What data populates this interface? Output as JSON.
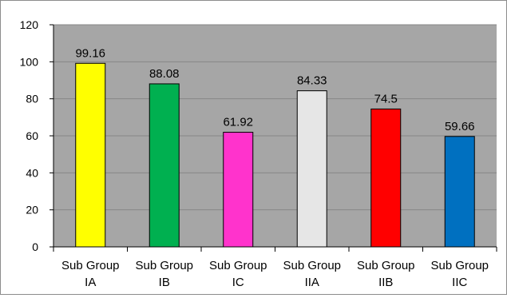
{
  "chart_data": {
    "type": "bar",
    "categories": [
      [
        "Sub Group",
        "IA"
      ],
      [
        "Sub Group",
        "IB"
      ],
      [
        "Sub Group",
        "IC"
      ],
      [
        "Sub Group",
        "IIA"
      ],
      [
        "Sub Group",
        "IIB"
      ],
      [
        "Sub Group",
        "IIC"
      ]
    ],
    "values": [
      99.16,
      88.08,
      61.92,
      84.33,
      74.5,
      59.66
    ],
    "value_labels": [
      "99.16",
      "88.08",
      "61.92",
      "84.33",
      "74.5",
      "59.66"
    ],
    "bar_colors": [
      "#ffff00",
      "#00b050",
      "#ff33cc",
      "#e6e6e6",
      "#ff0000",
      "#0070c0"
    ],
    "ylim": [
      0,
      120
    ],
    "yticks": [
      0,
      20,
      40,
      60,
      80,
      100,
      120
    ],
    "grid": true,
    "legend": "none",
    "plot_background": "#a6a6a6",
    "gridline_color": "#868686"
  }
}
